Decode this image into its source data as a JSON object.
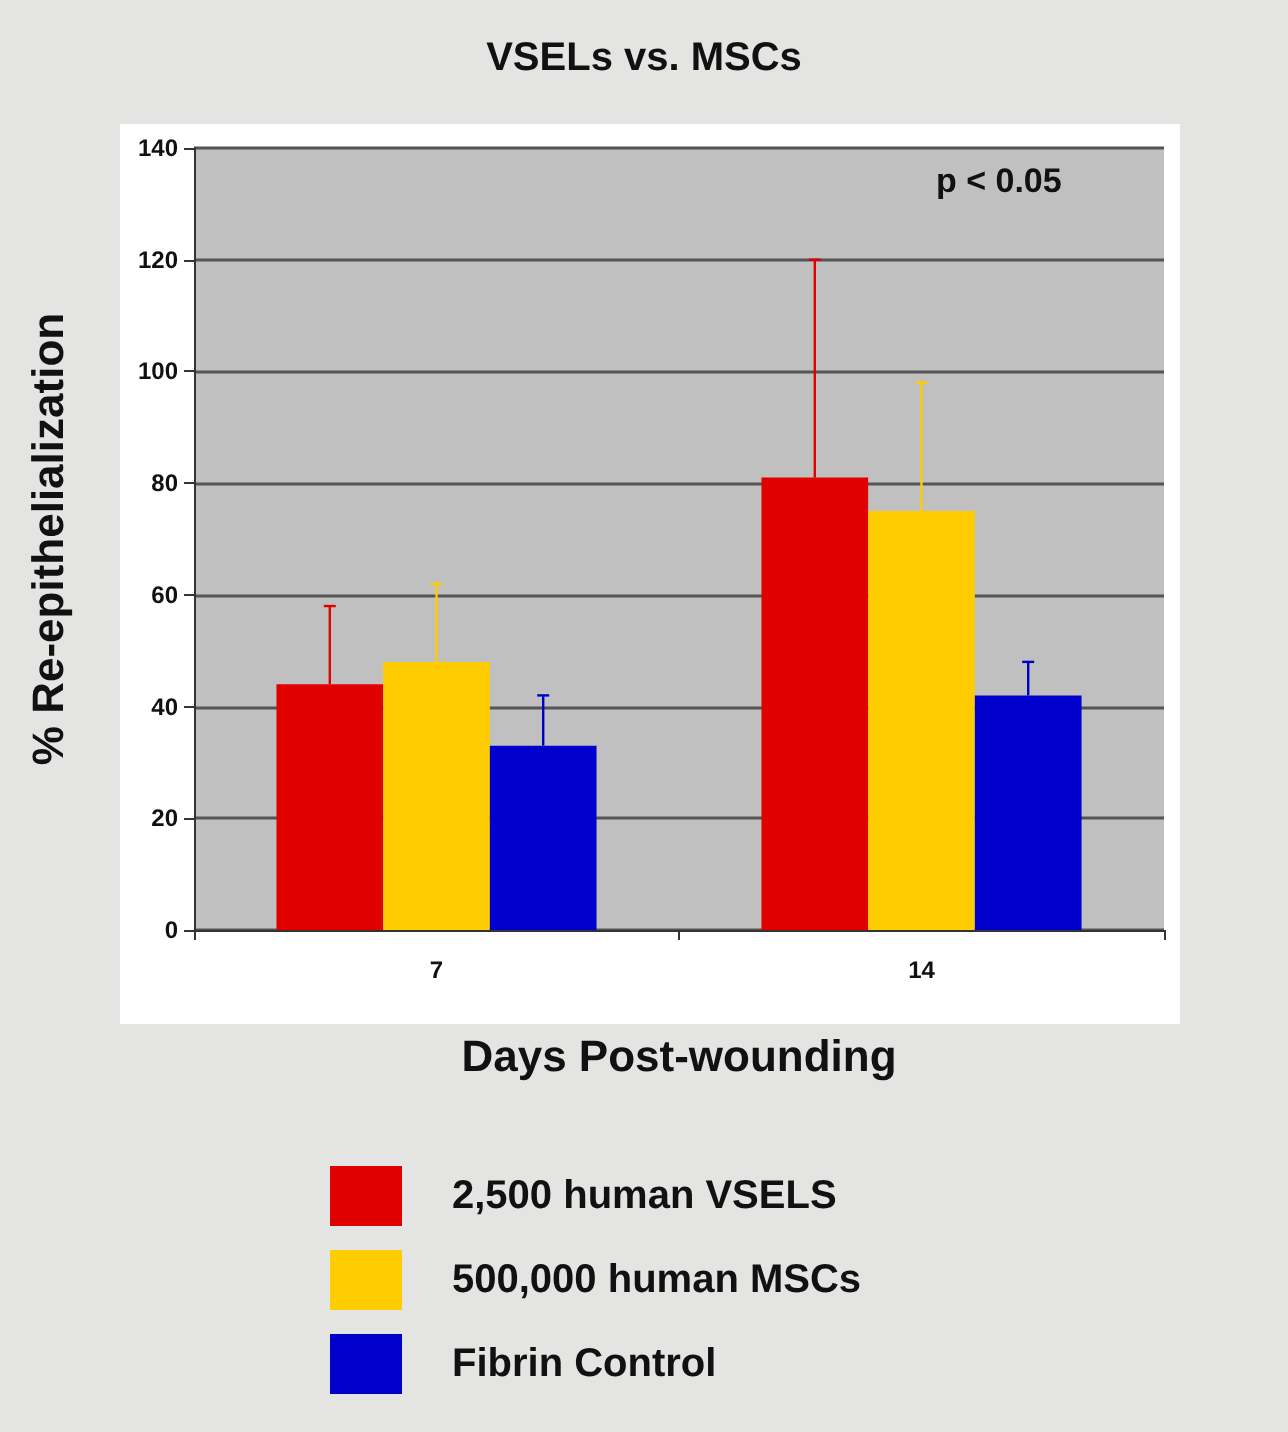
{
  "chart_data": {
    "type": "bar",
    "title": "VSELs vs. MSCs",
    "xlabel": "Days Post-wounding",
    "ylabel": "% Re-epithelialization",
    "categories": [
      "7",
      "14"
    ],
    "series": [
      {
        "name": "2,500 human VSELS",
        "color": "#e00000",
        "values": [
          44,
          81
        ],
        "errors": [
          [
            44,
            58
          ],
          [
            81,
            120
          ]
        ]
      },
      {
        "name": "500,000 human MSCs",
        "color": "#ffcc00",
        "values": [
          48,
          75
        ],
        "errors": [
          [
            48,
            62
          ],
          [
            75,
            98
          ]
        ]
      },
      {
        "name": "Fibrin Control",
        "color": "#0000cc",
        "values": [
          33,
          42
        ],
        "errors": [
          [
            33,
            42
          ],
          [
            42,
            48
          ]
        ]
      }
    ],
    "ylim": [
      0,
      140
    ],
    "yticks": [
      0,
      20,
      40,
      60,
      80,
      100,
      120,
      140
    ],
    "grid": "y",
    "legend": "bottom",
    "annotations": [
      "p < 0.05"
    ]
  }
}
